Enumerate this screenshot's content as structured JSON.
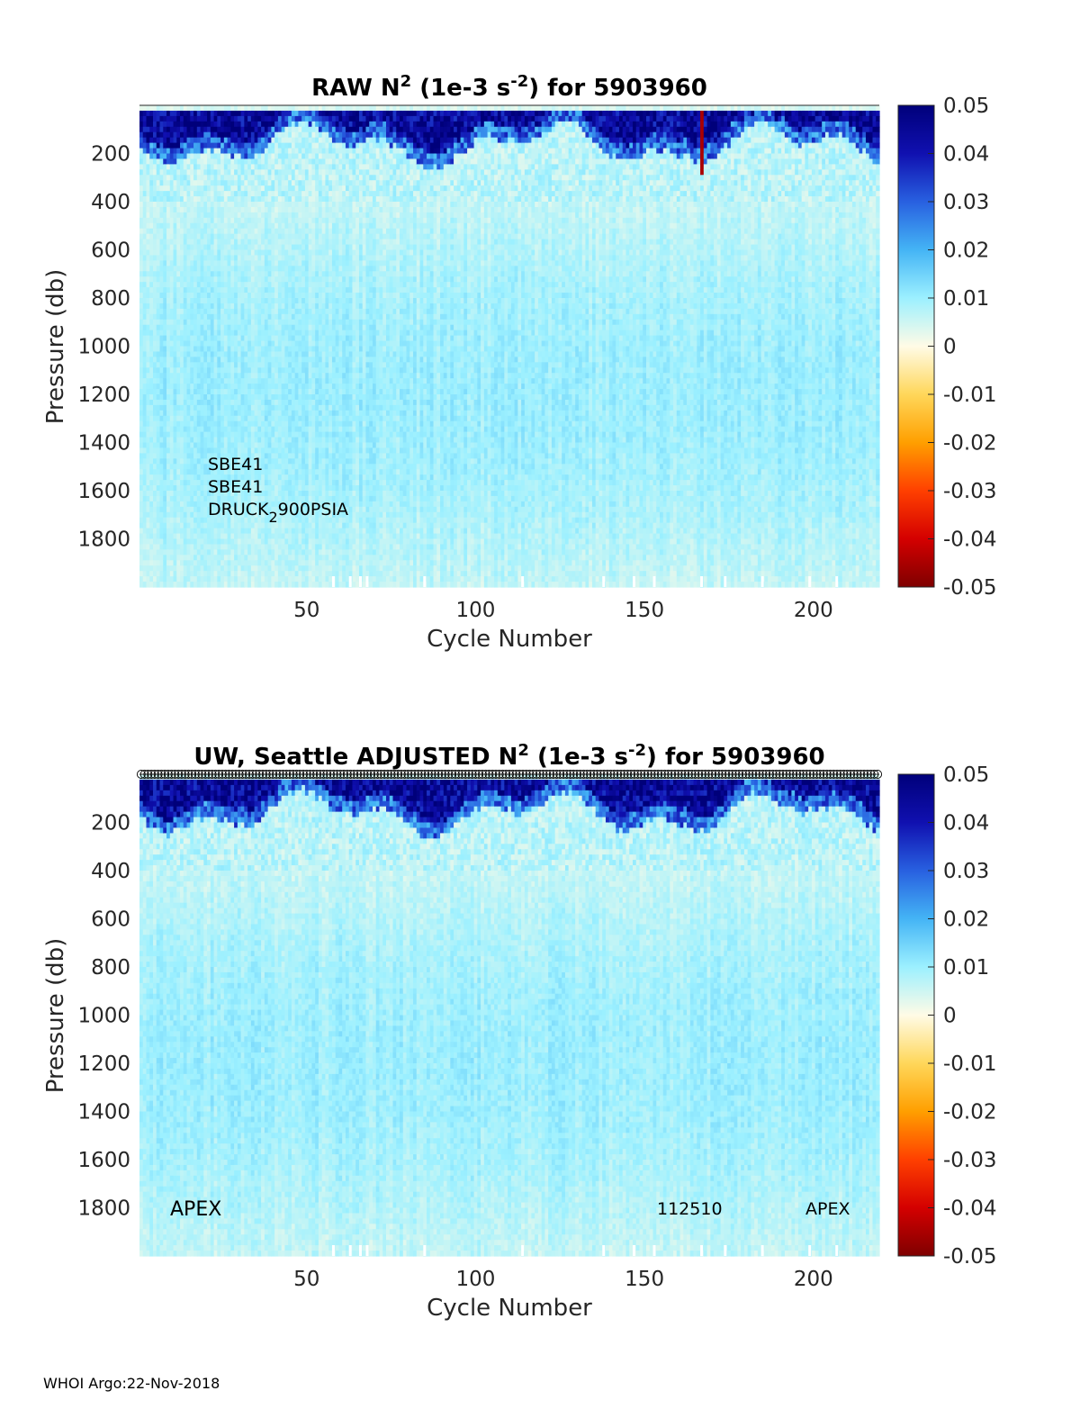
{
  "footer": "WHOI Argo:22-Nov-2018",
  "chart_data": [
    {
      "type": "heatmap",
      "title_parts": [
        "RAW N",
        "2",
        " (1e-3 s",
        "-2",
        ") for 5903960"
      ],
      "xlabel": "Cycle Number",
      "ylabel": "Pressure (db)",
      "xlim": [
        1,
        219
      ],
      "ylim": [
        2000,
        0
      ],
      "x_ticks": [
        "50",
        "100",
        "150",
        "200"
      ],
      "y_ticks": [
        "200",
        "400",
        "600",
        "800",
        "1000",
        "1200",
        "1400",
        "1600",
        "1800"
      ],
      "colorbar": {
        "range": [
          -0.05,
          0.05
        ],
        "ticks": [
          "0.05",
          "0.04",
          "0.03",
          "0.02",
          "0.01",
          "0",
          "-0.01",
          "-0.02",
          "-0.03",
          "-0.04",
          "-0.05"
        ],
        "colormap": "jet-like, white at zero",
        "colors": [
          "#7f0000",
          "#d40000",
          "#ff4000",
          "#ff9f00",
          "#ffd75a",
          "#fffbe6",
          "#9cf0ff",
          "#44b4f5",
          "#2860e0",
          "#1010b0",
          "#00007a"
        ]
      },
      "annotations": {
        "sensor_1": "SBE41",
        "sensor_2": "SBE41",
        "pressure_sensor_main": "DRUCK",
        "pressure_sensor_sub": "2",
        "pressure_sensor_tail": "900PSIA"
      },
      "features": {
        "surface_layer_value": 0.045,
        "deep_value": 0.008,
        "surface_layer_depth": [
          50,
          200
        ],
        "anomaly_cycle": 167
      }
    },
    {
      "type": "heatmap",
      "title_parts": [
        "UW, Seattle  ADJUSTED N",
        "2",
        " (1e-3 s",
        "-2",
        ") for 5903960"
      ],
      "xlabel": "Cycle Number",
      "ylabel": "Pressure (db)",
      "xlim": [
        1,
        219
      ],
      "ylim": [
        2000,
        0
      ],
      "x_ticks": [
        "50",
        "100",
        "150",
        "200"
      ],
      "y_ticks": [
        "200",
        "400",
        "600",
        "800",
        "1000",
        "1200",
        "1400",
        "1600",
        "1800"
      ],
      "colorbar": {
        "range": [
          -0.05,
          0.05
        ],
        "ticks": [
          "0.05",
          "0.04",
          "0.03",
          "0.02",
          "0.01",
          "0",
          "-0.01",
          "-0.02",
          "-0.03",
          "-0.04",
          "-0.05"
        ],
        "colormap": "jet-like, white at zero"
      },
      "annotations": {
        "left": "APEX",
        "serial": "112510",
        "right": "APEX"
      },
      "features": {
        "circle_markers": "one per cycle along the top axis",
        "surface_layer_value": 0.045,
        "deep_value": 0.008
      }
    }
  ]
}
